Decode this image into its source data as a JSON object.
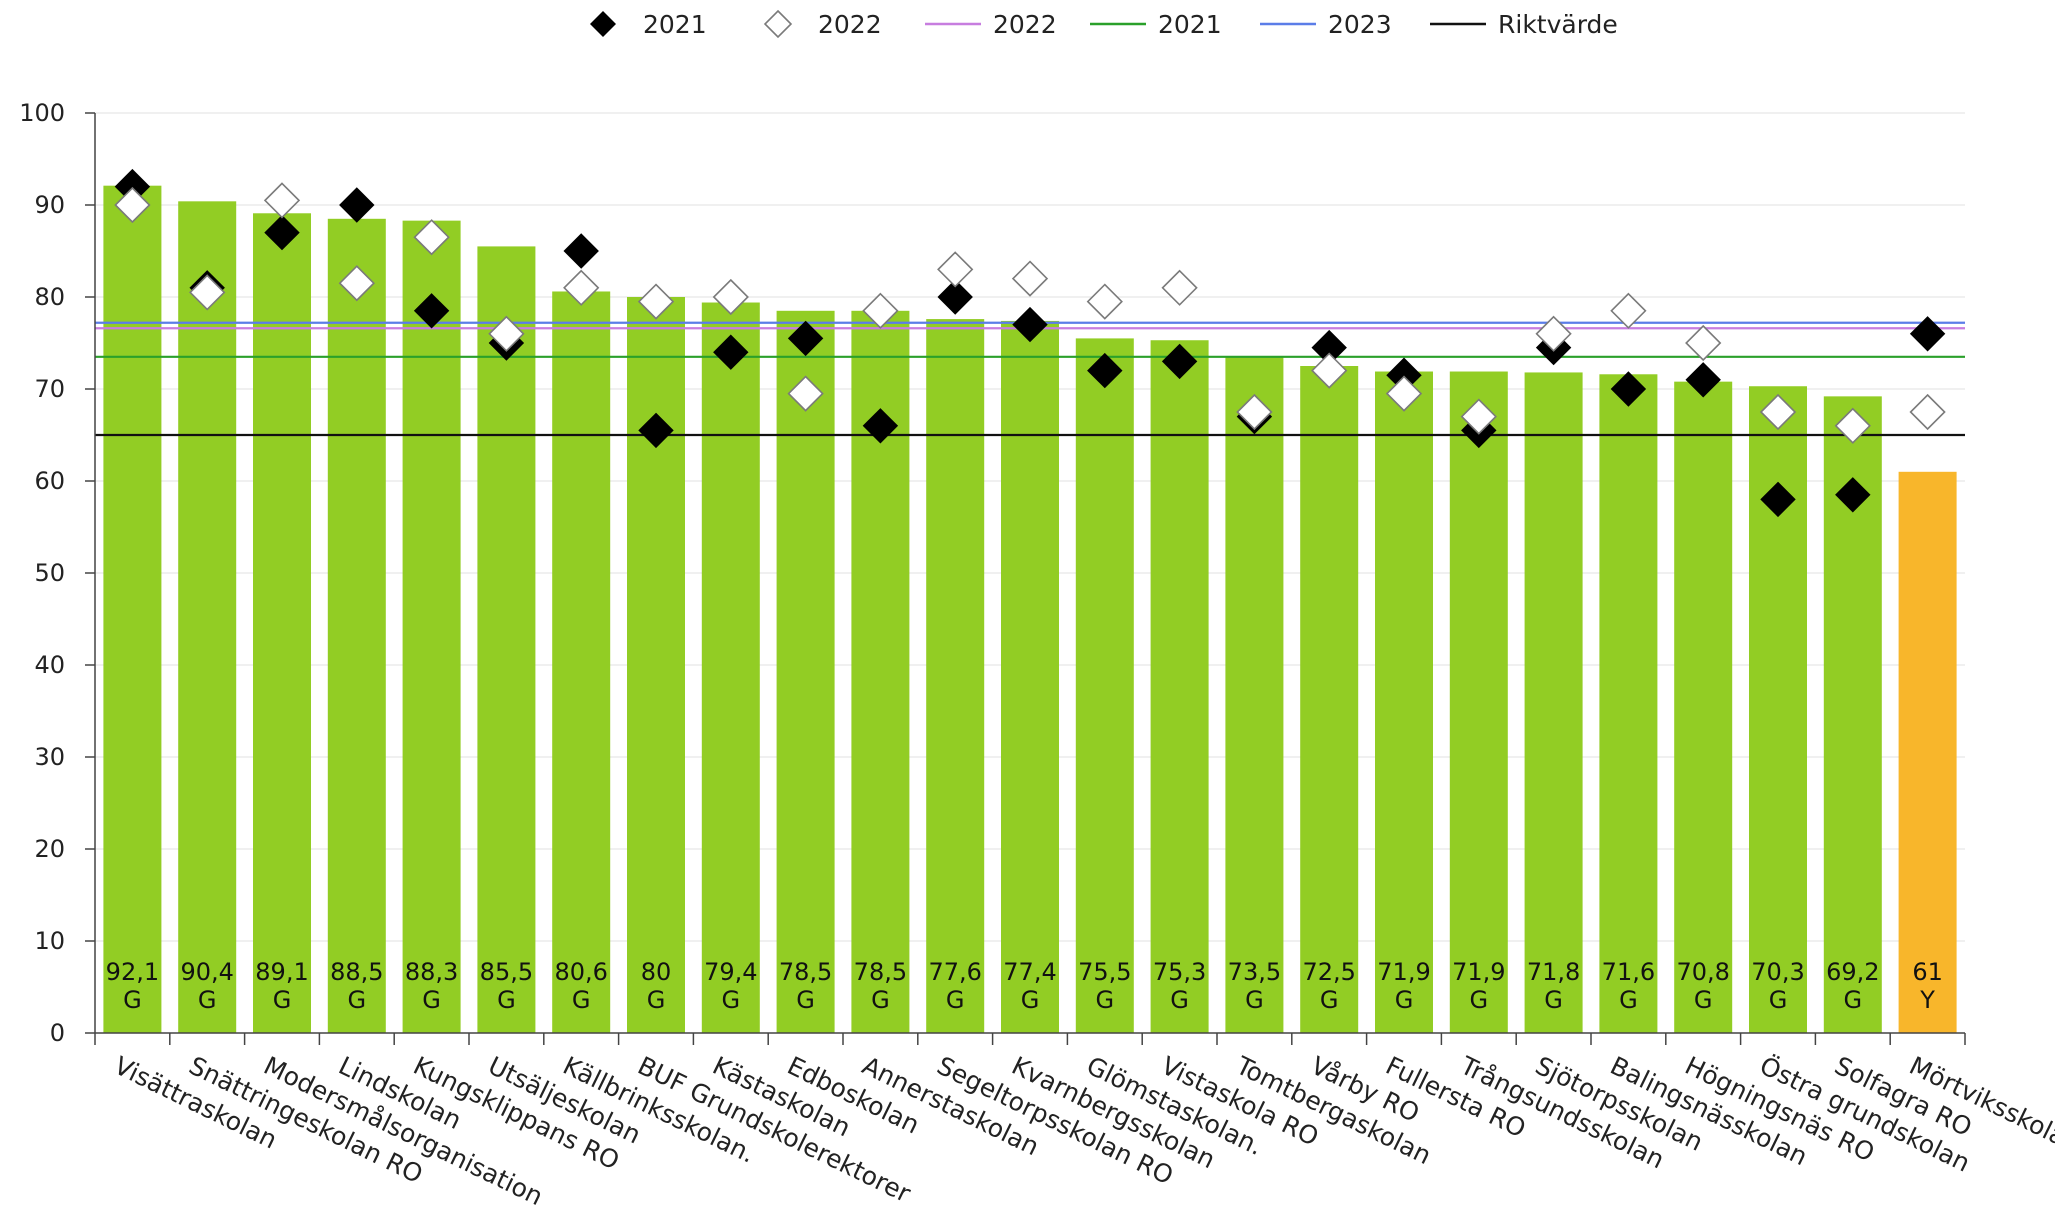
{
  "chart_data": {
    "type": "bar",
    "title": "",
    "xlabel": "",
    "ylabel": "",
    "ylim": [
      0,
      100
    ],
    "yticks": [
      0,
      10,
      20,
      30,
      40,
      50,
      60,
      70,
      80,
      90,
      100
    ],
    "grid": "horizontal",
    "legend_position": "top-center",
    "categories": [
      "Visättraskolan",
      "Snättringeskolan RO",
      "Modersmålsorganisation",
      "Lindskolan",
      "Kungsklippans RO",
      "Utsäljeskolan",
      "Källbrinksskolan.",
      "BUF Grundskolerektorer",
      "Kästaskolan",
      "Edboskolan",
      "Annerstaskolan",
      "Segeltorpsskolan RO",
      "Kvarnbergsskolan",
      "Glömstaskolan.",
      "Vistaskola RO",
      "Tomtbergaskolan",
      "Vårby RO",
      "Fullersta RO",
      "Trångsundsskolan",
      "Sjötorpsskolan",
      "Balingsnässkolan",
      "Högningsnäs RO",
      "Östra grundskolan",
      "Solfagra RO",
      "Mörtviksskolan"
    ],
    "bars": {
      "values": [
        92.1,
        90.4,
        89.1,
        88.5,
        88.3,
        85.5,
        80.6,
        80,
        79.4,
        78.5,
        78.5,
        77.6,
        77.4,
        75.5,
        75.3,
        73.5,
        72.5,
        71.9,
        71.9,
        71.8,
        71.6,
        70.8,
        70.3,
        69.2,
        61
      ],
      "labels": [
        "92,1",
        "90,4",
        "89,1",
        "88,5",
        "88,3",
        "85,5",
        "80,6",
        "80",
        "79,4",
        "78,5",
        "78,5",
        "77,6",
        "77,4",
        "75,5",
        "75,3",
        "73,5",
        "72,5",
        "71,9",
        "71,9",
        "71,8",
        "71,6",
        "70,8",
        "70,3",
        "69,2",
        "61"
      ],
      "grades": [
        "G",
        "G",
        "G",
        "G",
        "G",
        "G",
        "G",
        "G",
        "G",
        "G",
        "G",
        "G",
        "G",
        "G",
        "G",
        "G",
        "G",
        "G",
        "G",
        "G",
        "G",
        "G",
        "G",
        "G",
        "Y"
      ],
      "grade_colors": {
        "G": "#92cd24",
        "Y": "#f8b62b"
      }
    },
    "markers": [
      {
        "name": "2021",
        "style": "filled-diamond",
        "color": "#000000",
        "values": [
          92,
          81,
          87,
          90,
          78.5,
          75,
          85,
          65.5,
          74,
          75.5,
          66,
          80,
          77,
          72,
          73,
          67,
          74.5,
          71.5,
          65.5,
          74.5,
          70,
          71,
          58,
          58.5,
          76
        ]
      },
      {
        "name": "2022",
        "style": "open-diamond",
        "color": "#888888",
        "values": [
          90,
          80.5,
          90.5,
          81.5,
          86.5,
          76,
          81,
          79.5,
          80,
          69.5,
          78.5,
          83,
          82,
          79.5,
          81,
          67.5,
          72,
          69.5,
          67,
          76,
          78.5,
          75,
          67.5,
          66,
          67.5
        ]
      }
    ],
    "reference_lines": [
      {
        "name": "2022",
        "value": 76.6,
        "color": "#c77ddf"
      },
      {
        "name": "2021",
        "value": 73.5,
        "color": "#2aa02a"
      },
      {
        "name": "2023",
        "value": 77.2,
        "color": "#5b7de8"
      },
      {
        "name": "Riktvärde",
        "value": 65,
        "color": "#111111"
      }
    ],
    "legend": [
      {
        "label": "2021",
        "kind": "filled-diamond",
        "color": "#000000"
      },
      {
        "label": "2022",
        "kind": "open-diamond",
        "color": "#888888"
      },
      {
        "label": "2022",
        "kind": "line",
        "color": "#c77ddf"
      },
      {
        "label": "2021",
        "kind": "line",
        "color": "#2aa02a"
      },
      {
        "label": "2023",
        "kind": "line",
        "color": "#5b7de8"
      },
      {
        "label": "Riktvärde",
        "kind": "line",
        "color": "#111111"
      }
    ]
  }
}
